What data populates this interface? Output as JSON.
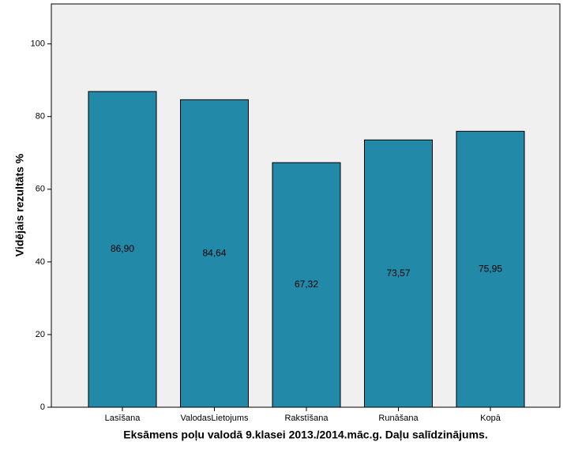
{
  "chart_data": {
    "type": "bar",
    "x_label": "Eksāmens poļu valodā 9.klasei 2013./2014.māc.g. Daļu salīdzinājums.",
    "y_label": "Vidējais rezultāts %",
    "categories": [
      "Lasīšana",
      "ValodasLietojums",
      "Rakstīšana",
      "Runāšana",
      "Kopā"
    ],
    "values": [
      86.9,
      84.64,
      67.32,
      73.57,
      75.95
    ],
    "value_labels": [
      "86,90",
      "84,64",
      "67,32",
      "73,57",
      "75,95"
    ],
    "color": "#2389a8",
    "ylim": [
      0,
      111
    ],
    "yticks": [
      0,
      20,
      40,
      60,
      80,
      100
    ],
    "grid": false
  }
}
